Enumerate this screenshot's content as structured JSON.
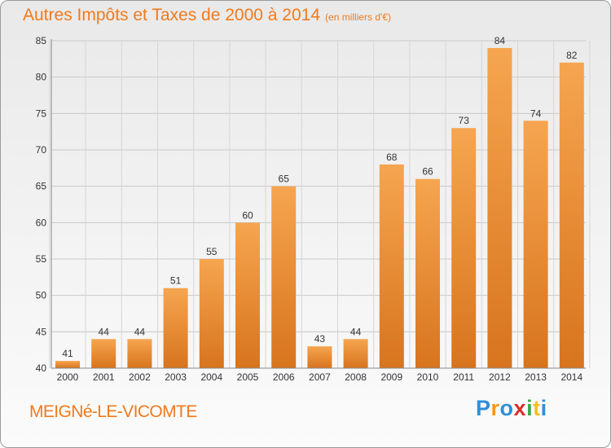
{
  "header": {
    "title": "Autres Impôts et Taxes de 2000 à 2014",
    "subtitle": "(en milliers d'€)"
  },
  "footer": {
    "commune": "MEIGNé-LE-VICOMTE",
    "logo_letters": [
      "P",
      "r",
      "o",
      "x",
      "i",
      "t",
      "i"
    ]
  },
  "colors": {
    "accent": "#f07a1c",
    "bar_light": "#f6a550",
    "bar_dark": "#d8741e"
  },
  "chart_data": {
    "type": "bar",
    "title": "Autres Impôts et Taxes de 2000 à 2014",
    "subtitle": "(en milliers d'€)",
    "categories": [
      "2000",
      "2001",
      "2002",
      "2003",
      "2004",
      "2005",
      "2006",
      "2007",
      "2008",
      "2009",
      "2010",
      "2011",
      "2012",
      "2013",
      "2014"
    ],
    "values": [
      41,
      44,
      44,
      51,
      55,
      60,
      65,
      43,
      44,
      68,
      66,
      73,
      84,
      74,
      82
    ],
    "ylim": [
      40,
      85
    ],
    "yticks": [
      40,
      45,
      50,
      55,
      60,
      65,
      70,
      75,
      80,
      85
    ],
    "grid": true,
    "legend": "none"
  }
}
